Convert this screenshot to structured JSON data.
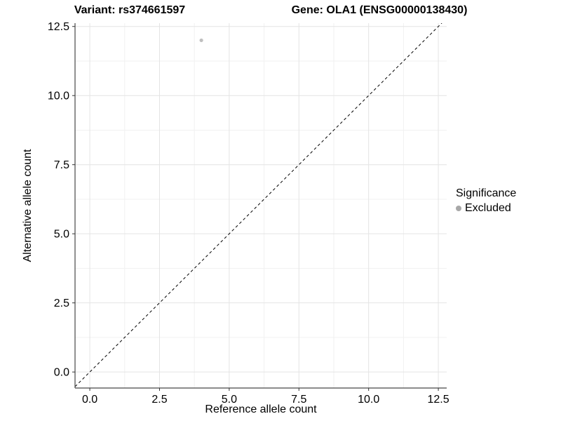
{
  "titles": {
    "left": "Variant: rs374661597",
    "right": "Gene: OLA1 (ENSG00000138430)"
  },
  "chart_data": {
    "type": "scatter",
    "xlabel": "Reference allele count",
    "ylabel": "Alternative allele count",
    "xlim": [
      -0.53,
      12.8
    ],
    "ylim": [
      -0.58,
      12.62
    ],
    "x_ticks": {
      "values": [
        0,
        2.5,
        5,
        7.5,
        10,
        12.5
      ],
      "labels": [
        "0.0",
        "2.5",
        "5.0",
        "7.5",
        "10.0",
        "12.5"
      ]
    },
    "y_ticks": {
      "values": [
        0,
        2.5,
        5,
        7.5,
        10,
        12.5
      ],
      "labels": [
        "0.0",
        "2.5",
        "5.0",
        "7.5",
        "10.0",
        "12.5"
      ]
    },
    "minor_breaks": [
      1.25,
      3.75,
      6.25,
      8.75,
      11.25
    ],
    "grid": true,
    "points": [
      {
        "x": 4,
        "y": 12,
        "series": "Excluded"
      }
    ],
    "abline": {
      "slope": 1,
      "intercept": 0,
      "style": "dashed"
    },
    "legend": {
      "position": "right",
      "title": "Significance",
      "entries": [
        {
          "label": "Excluded",
          "color": "#a8a8a8"
        }
      ]
    },
    "colors": {
      "point": "#bfbfbf",
      "legend_key": "#a8a8a8",
      "grid_major": "#e4e4e4",
      "grid_minor": "#f1f1f1",
      "axis_line": "#474747",
      "tick_mark": "#333333",
      "abline": "#000000",
      "text": "#000000",
      "background": "#ffffff"
    }
  }
}
